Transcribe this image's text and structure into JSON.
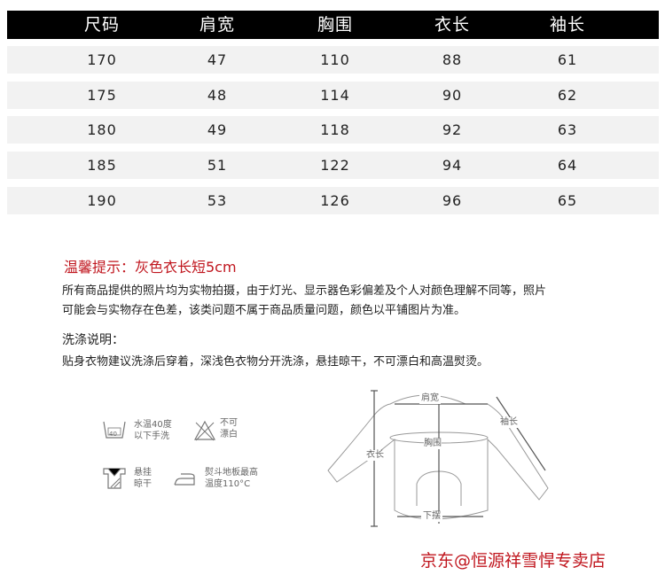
{
  "size_table": {
    "headers": [
      "尺码",
      "肩宽",
      "胸围",
      "衣长",
      "袖长"
    ],
    "rows": [
      [
        "170",
        "47",
        "110",
        "88",
        "61"
      ],
      [
        "175",
        "48",
        "114",
        "90",
        "62"
      ],
      [
        "180",
        "49",
        "118",
        "92",
        "63"
      ],
      [
        "185",
        "51",
        "122",
        "94",
        "64"
      ],
      [
        "190",
        "53",
        "126",
        "96",
        "65"
      ]
    ]
  },
  "notice": {
    "title": "温馨提示：灰色衣长短5cm",
    "line1": "所有商品提供的照片均为实物拍摄，由于灯光、显示器色彩偏差及个人对颜色理解不同等，照片",
    "line2": "可能会与实物存在色差，该类问题不属于商品质量问题，颜色以平铺图片为准。"
  },
  "washing": {
    "title": "洗涤说明：",
    "text": "贴身衣物建议洗涤后穿着，深浅色衣物分开洗涤，悬挂晾干，不可漂白和高温熨烫。"
  },
  "care_icons": [
    {
      "icon": "wash-tub-icon",
      "number": "40",
      "line1": "水温40度",
      "line2": "以下手洗"
    },
    {
      "icon": "no-bleach-icon",
      "line1": "不可",
      "line2": "漂白"
    },
    {
      "icon": "hang-dry-icon",
      "line1": "悬挂",
      "line2": "晾干"
    },
    {
      "icon": "iron-icon",
      "line1": "熨斗地板最高",
      "line2": "温度110°C"
    }
  ],
  "diagram": {
    "shoulder": "肩宽",
    "sleeve": "袖长",
    "chest": "胸围",
    "length": "衣长",
    "hem": "下摆"
  },
  "store": "京东@恒源祥雪悍专卖店",
  "colors": {
    "header": "#000000",
    "row": "#f2f2f2",
    "accent": "#c0161e"
  }
}
